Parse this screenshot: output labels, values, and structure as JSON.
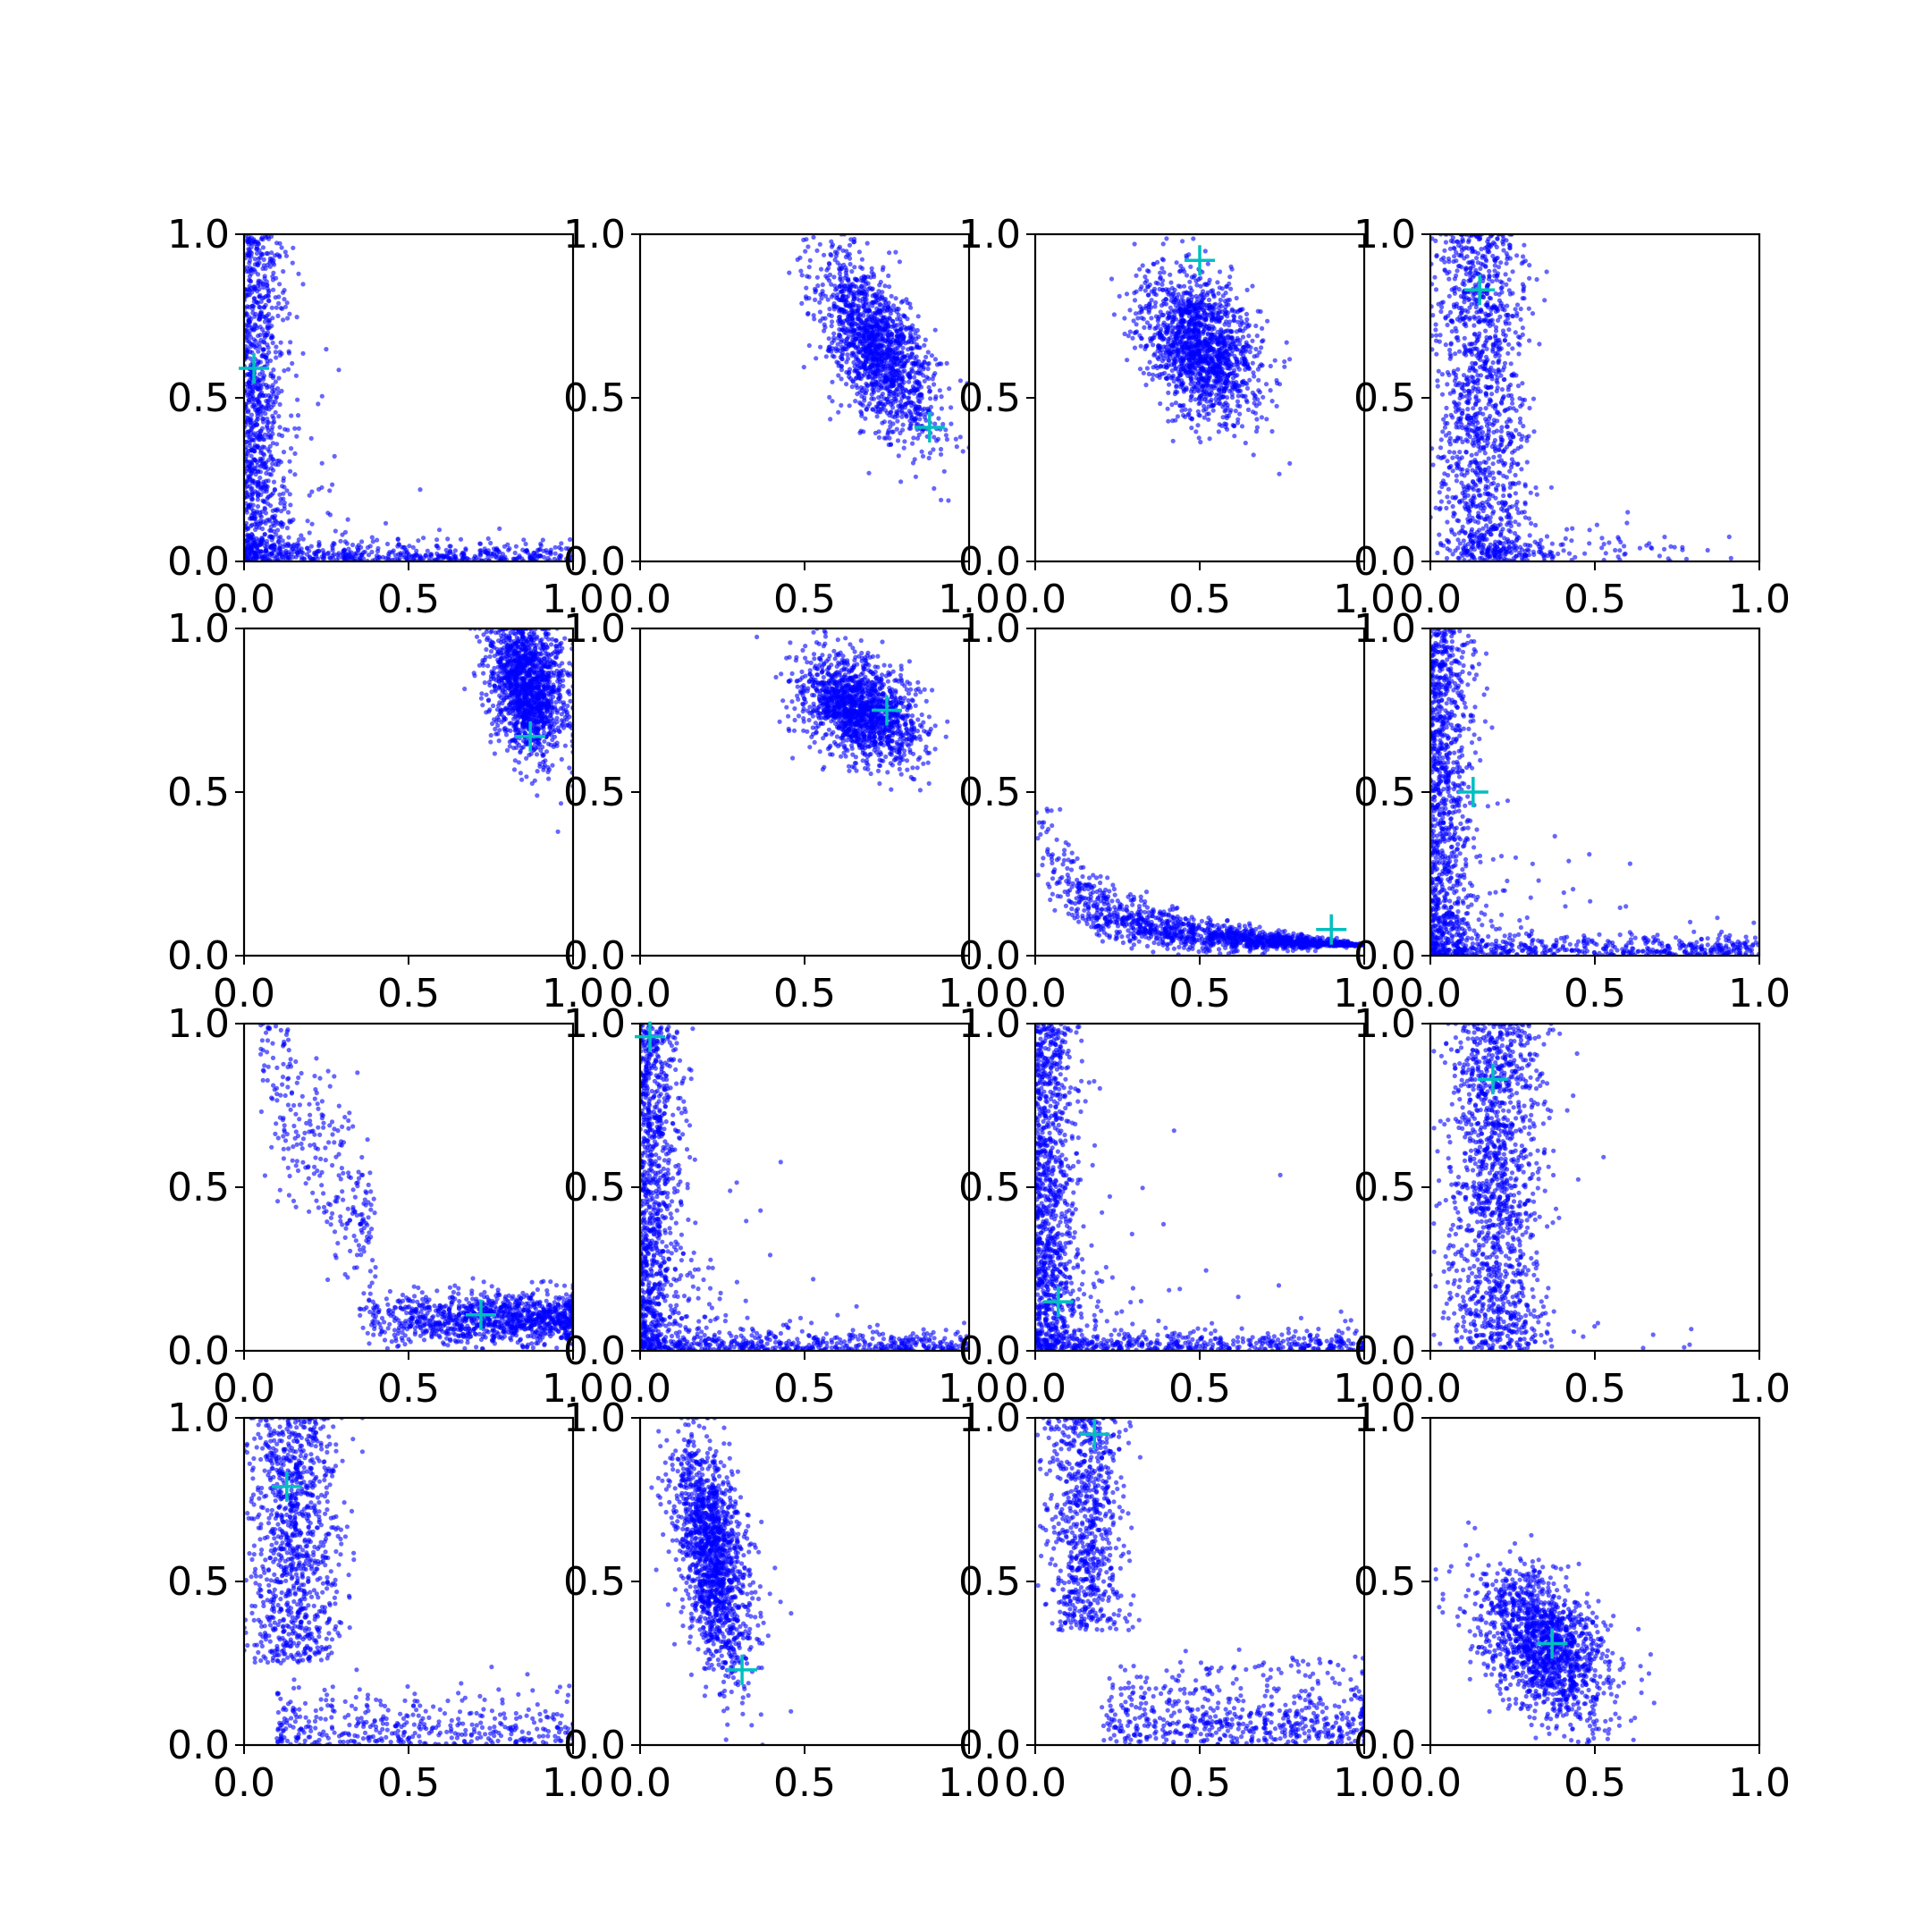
{
  "colors": {
    "points": "#0000ff",
    "marker": "#00bfbf",
    "axes": "#000000",
    "background": "#ffffff"
  },
  "chart_data": {
    "type": "scatter",
    "layout": "4x4 grid of small-multiple scatter plots",
    "title": "",
    "xlabel": "",
    "ylabel": "",
    "xlim": [
      0,
      1
    ],
    "ylim": [
      0,
      1
    ],
    "xticks": [
      "0.0",
      "0.5",
      "1.0"
    ],
    "yticks": [
      "0.0",
      "0.5",
      "1.0"
    ],
    "grid": false,
    "legend": "none",
    "point_color": "blue (semi-transparent)",
    "marker_style": "cyan plus",
    "panels": [
      {
        "row": 1,
        "col": 1,
        "marker": [
          0.03,
          0.59
        ],
        "shape": "L-shaped decay hugging both axes",
        "approx_points": 1500
      },
      {
        "row": 1,
        "col": 2,
        "marker": [
          0.88,
          0.41
        ],
        "shape": "elongated cluster centered near (0.72, 0.65), negative slope",
        "approx_points": 1500
      },
      {
        "row": 1,
        "col": 3,
        "marker": [
          0.5,
          0.92
        ],
        "shape": "compact cluster centered near (0.50, 0.65)",
        "approx_points": 1500
      },
      {
        "row": 1,
        "col": 4,
        "marker": [
          0.15,
          0.83
        ],
        "shape": "vertical band near x≈0.15 with tail to lower right",
        "approx_points": 1500
      },
      {
        "row": 2,
        "col": 1,
        "marker": [
          0.87,
          0.67
        ],
        "shape": "dense cluster at upper right near (0.87, 0.83)",
        "approx_points": 1500
      },
      {
        "row": 2,
        "col": 2,
        "marker": [
          0.75,
          0.75
        ],
        "shape": "cluster centered near (0.67, 0.75)",
        "approx_points": 1500
      },
      {
        "row": 2,
        "col": 3,
        "marker": [
          0.9,
          0.08
        ],
        "shape": "hyperbolic decay curve",
        "approx_points": 1500
      },
      {
        "row": 2,
        "col": 4,
        "marker": [
          0.13,
          0.5
        ],
        "shape": "L-shaped decay along left and bottom edges",
        "approx_points": 1500
      },
      {
        "row": 3,
        "col": 1,
        "marker": [
          0.72,
          0.11
        ],
        "shape": "sparse upper-left tail and dense band near y≈0.1",
        "approx_points": 1500
      },
      {
        "row": 3,
        "col": 2,
        "marker": [
          0.03,
          0.96
        ],
        "shape": "L-shaped decay hugging both axes",
        "approx_points": 1500
      },
      {
        "row": 3,
        "col": 3,
        "marker": [
          0.07,
          0.15
        ],
        "shape": "L-shaped decay hugging both axes",
        "approx_points": 1500
      },
      {
        "row": 3,
        "col": 4,
        "marker": [
          0.19,
          0.83
        ],
        "shape": "vertical cluster near x≈0.2 with a few outliers at bottom right",
        "approx_points": 1500
      },
      {
        "row": 4,
        "col": 1,
        "marker": [
          0.13,
          0.79
        ],
        "shape": "vertical band near x≈0.15 with tail along bottom",
        "approx_points": 1500
      },
      {
        "row": 4,
        "col": 2,
        "marker": [
          0.31,
          0.23
        ],
        "shape": "elongated cluster near x≈0.23, slight negative slope",
        "approx_points": 1500
      },
      {
        "row": 4,
        "col": 3,
        "marker": [
          0.18,
          0.95
        ],
        "shape": "hook shape: vertical near x≈0.15 then decaying along bottom",
        "approx_points": 1500
      },
      {
        "row": 4,
        "col": 4,
        "marker": [
          0.37,
          0.31
        ],
        "shape": "diffuse cluster centered near (0.35, 0.30)",
        "approx_points": 1500
      }
    ]
  }
}
